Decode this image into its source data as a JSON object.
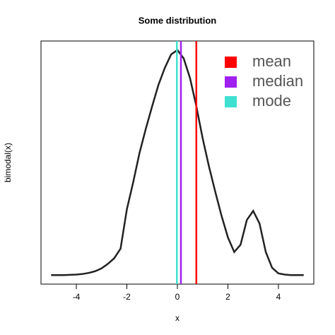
{
  "chart_data": {
    "type": "line",
    "title": "Some distribution",
    "x_label": "x",
    "y_label": "bimodal(x)",
    "x": [
      -5,
      -4.75,
      -4.5,
      -4.25,
      -4,
      -3.75,
      -3.5,
      -3.25,
      -3,
      -2.75,
      -2.5,
      -2.25,
      -2,
      -1.75,
      -1.5,
      -1.25,
      -1,
      -0.75,
      -0.5,
      -0.25,
      0,
      0.25,
      0.5,
      0.75,
      1,
      1.25,
      1.5,
      1.75,
      2,
      2.25,
      2.5,
      2.75,
      3,
      3.25,
      3.5,
      3.75,
      4,
      4.25,
      4.5,
      4.75,
      5
    ],
    "series": [
      {
        "name": "bimodal(x)",
        "color": "#222222",
        "values": [
          0,
          0,
          0,
          0.0005,
          0.001,
          0.002,
          0.004,
          0.007,
          0.012,
          0.02,
          0.03,
          0.047,
          0.117,
          0.165,
          0.217,
          0.26,
          0.3,
          0.338,
          0.368,
          0.392,
          0.4,
          0.385,
          0.35,
          0.3,
          0.243,
          0.193,
          0.148,
          0.105,
          0.067,
          0.041,
          0.054,
          0.098,
          0.114,
          0.092,
          0.041,
          0.013,
          0.003,
          0.001,
          0,
          0,
          0
        ]
      }
    ],
    "vlines": [
      {
        "name": "mean",
        "color": "#ff0000",
        "x": 0.75
      },
      {
        "name": "median",
        "color": "#a020f0",
        "x": 0.14
      },
      {
        "name": "mode",
        "color": "#40e0d0",
        "x": -0.02
      }
    ],
    "xlim": [
      -5.4,
      5.4
    ],
    "xticks": [
      -4,
      -2,
      0,
      2,
      4
    ],
    "ylim": [
      -0.016,
      0.416
    ],
    "legend": "top-right"
  }
}
